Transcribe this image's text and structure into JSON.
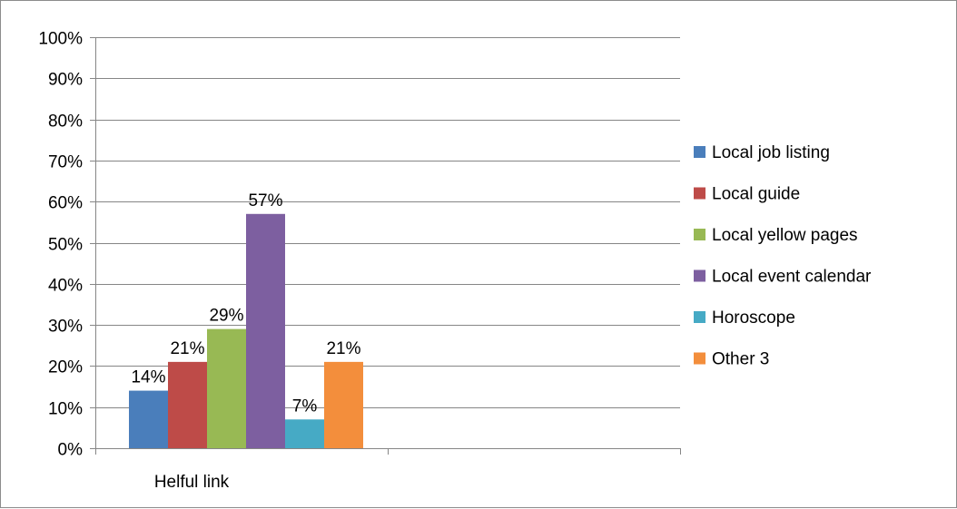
{
  "chart_data": {
    "type": "bar",
    "categories": [
      "Helful link"
    ],
    "series": [
      {
        "name": "Local job listing",
        "values": [
          14
        ],
        "label": "14%",
        "color": "#4a7ebb"
      },
      {
        "name": "Local guide",
        "values": [
          21
        ],
        "label": "21%",
        "color": "#be4b48"
      },
      {
        "name": "Local yellow pages",
        "values": [
          29
        ],
        "label": "29%",
        "color": "#98b954"
      },
      {
        "name": "Local event calendar",
        "values": [
          57
        ],
        "label": "57%",
        "color": "#7d5fa0"
      },
      {
        "name": "Horoscope",
        "values": [
          7
        ],
        "label": "7%",
        "color": "#46aac5"
      },
      {
        "name": "Other 3",
        "values": [
          21
        ],
        "label": "21%",
        "color": "#f38e3c"
      }
    ],
    "ylim": [
      0,
      100
    ],
    "yticks": [
      "0%",
      "10%",
      "20%",
      "30%",
      "40%",
      "50%",
      "60%",
      "70%",
      "80%",
      "90%",
      "100%"
    ],
    "grid": true,
    "legend": "right",
    "title": "",
    "xlabel": "",
    "ylabel": ""
  }
}
